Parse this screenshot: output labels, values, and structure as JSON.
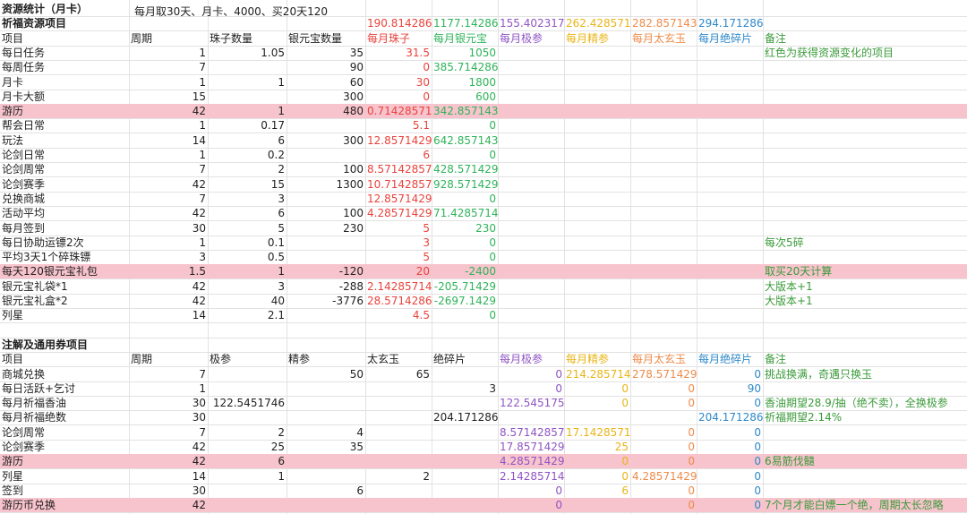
{
  "title": "资源统计（月卡）",
  "subtitle": "每月取30天、月卡、4000、买20天120",
  "section1": {
    "title": "祈福资源项目",
    "totals": [
      "190.814286",
      "1177.14286",
      "155.402317",
      "262.428571",
      "282.857143",
      "294.171286"
    ],
    "headers": [
      "项目",
      "周期",
      "珠子数量",
      "银元宝数量",
      "每月珠子",
      "每月银元宝",
      "每月极参",
      "每月精参",
      "每月太玄玉",
      "每月绝碎片",
      "备注"
    ],
    "rows": [
      {
        "name": "每日任务",
        "period": "1",
        "beads": "1.05",
        "silver": "35",
        "mbeads": "31.5",
        "msilver": "1050",
        "note": "红色为获得资源变化的项目",
        "hl": false
      },
      {
        "name": "每周任务",
        "period": "7",
        "beads": "",
        "silver": "90",
        "mbeads": "0",
        "msilver": "385.714286",
        "note": "",
        "hl": false
      },
      {
        "name": "月卡",
        "period": "1",
        "beads": "1",
        "silver": "60",
        "mbeads": "30",
        "msilver": "1800",
        "note": "",
        "hl": false
      },
      {
        "name": "月卡大额",
        "period": "15",
        "beads": "",
        "silver": "300",
        "mbeads": "0",
        "msilver": "600",
        "note": "",
        "hl": false
      },
      {
        "name": "游历",
        "period": "42",
        "beads": "1",
        "silver": "480",
        "mbeads": "0.71428571",
        "msilver": "342.857143",
        "note": "",
        "hl": true
      },
      {
        "name": "帮会日常",
        "period": "1",
        "beads": "0.17",
        "silver": "",
        "mbeads": "5.1",
        "msilver": "0",
        "note": "",
        "hl": false
      },
      {
        "name": "玩法",
        "period": "14",
        "beads": "6",
        "silver": "300",
        "mbeads": "12.8571429",
        "msilver": "642.857143",
        "note": "",
        "hl": false
      },
      {
        "name": "论剑日常",
        "period": "1",
        "beads": "0.2",
        "silver": "",
        "mbeads": "6",
        "msilver": "0",
        "note": "",
        "hl": false
      },
      {
        "name": "论剑周常",
        "period": "7",
        "beads": "2",
        "silver": "100",
        "mbeads": "8.57142857",
        "msilver": "428.571429",
        "note": "",
        "hl": false
      },
      {
        "name": "论剑赛季",
        "period": "42",
        "beads": "15",
        "silver": "1300",
        "mbeads": "10.7142857",
        "msilver": "928.571429",
        "note": "",
        "hl": false
      },
      {
        "name": "兑换商城",
        "period": "7",
        "beads": "3",
        "silver": "",
        "mbeads": "12.8571429",
        "msilver": "0",
        "note": "",
        "hl": false
      },
      {
        "name": "活动平均",
        "period": "42",
        "beads": "6",
        "silver": "100",
        "mbeads": "4.28571429",
        "msilver": "71.4285714",
        "note": "",
        "hl": false
      },
      {
        "name": "每月签到",
        "period": "30",
        "beads": "5",
        "silver": "230",
        "mbeads": "5",
        "msilver": "230",
        "note": "",
        "hl": false
      },
      {
        "name": "每日协助运镖2次",
        "period": "1",
        "beads": "0.1",
        "silver": "",
        "mbeads": "3",
        "msilver": "0",
        "note": "每次5碎",
        "hl": false
      },
      {
        "name": "平均3天1个碎珠镖",
        "period": "3",
        "beads": "0.5",
        "silver": "",
        "mbeads": "5",
        "msilver": "0",
        "note": "",
        "hl": false
      },
      {
        "name": "每天120银元宝礼包",
        "period": "1.5",
        "beads": "1",
        "silver": "-120",
        "mbeads": "20",
        "msilver": "-2400",
        "note": "取买20天计算",
        "hl": true
      },
      {
        "name": "银元宝礼袋*1",
        "period": "42",
        "beads": "3",
        "silver": "-288",
        "mbeads": "2.14285714",
        "msilver": "-205.71429",
        "note": "大版本+1",
        "hl": false
      },
      {
        "name": "银元宝礼盒*2",
        "period": "42",
        "beads": "40",
        "silver": "-3776",
        "mbeads": "28.5714286",
        "msilver": "-2697.1429",
        "note": "大版本+1",
        "hl": false
      },
      {
        "name": "列星",
        "period": "14",
        "beads": "2.1",
        "silver": "",
        "mbeads": "4.5",
        "msilver": "0",
        "note": "",
        "hl": false
      }
    ]
  },
  "section2": {
    "title": "注解及通用券项目",
    "headers": [
      "项目",
      "周期",
      "极参",
      "精参",
      "太玄玉",
      "绝碎片",
      "每月极参",
      "每月精参",
      "每月太玄玉",
      "每月绝碎片",
      "备注"
    ],
    "rows": [
      {
        "name": "商城兑换",
        "period": "7",
        "ji": "",
        "jing": "50",
        "tai": "65",
        "jue": "",
        "mji": "0",
        "mjing": "214.285714",
        "mtai": "278.571429",
        "mjue": "0",
        "note": "挑战换满，奇遇只换玉",
        "hl": false
      },
      {
        "name": "每日活跃+乞讨",
        "period": "1",
        "ji": "",
        "jing": "",
        "tai": "",
        "jue": "3",
        "mji": "0",
        "mjing": "0",
        "mtai": "0",
        "mjue": "90",
        "note": "",
        "hl": false
      },
      {
        "name": "每月祈福香油",
        "period": "30",
        "ji": "122.5451746",
        "jing": "",
        "tai": "",
        "jue": "",
        "mji": "122.545175",
        "mjing": "0",
        "mtai": "0",
        "mjue": "0",
        "note": "香油期望28.9/抽（绝不卖），全换极参",
        "hl": false
      },
      {
        "name": "每月祈福绝数",
        "period": "30",
        "ji": "",
        "jing": "",
        "tai": "",
        "jue": "204.171286",
        "mji": "",
        "mjing": "",
        "mtai": "",
        "mjue": "204.171286",
        "note": "祈福期望2.14%",
        "hl": false
      },
      {
        "name": "论剑周常",
        "period": "7",
        "ji": "2",
        "jing": "4",
        "tai": "",
        "jue": "",
        "mji": "8.57142857",
        "mjing": "17.1428571",
        "mtai": "0",
        "mjue": "0",
        "note": "",
        "hl": false
      },
      {
        "name": "论剑赛季",
        "period": "42",
        "ji": "25",
        "jing": "35",
        "tai": "",
        "jue": "",
        "mji": "17.8571429",
        "mjing": "25",
        "mtai": "0",
        "mjue": "0",
        "note": "",
        "hl": false
      },
      {
        "name": "游历",
        "period": "42",
        "ji": "6",
        "jing": "",
        "tai": "",
        "jue": "",
        "mji": "4.28571429",
        "mjing": "0",
        "mtai": "0",
        "mjue": "0",
        "note": "6易筋伐髓",
        "hl": true
      },
      {
        "name": "列星",
        "period": "14",
        "ji": "1",
        "jing": "",
        "tai": "2",
        "jue": "",
        "mji": "2.14285714",
        "mjing": "0",
        "mtai": "4.28571429",
        "mjue": "0",
        "note": "",
        "hl": false
      },
      {
        "name": "签到",
        "period": "30",
        "ji": "",
        "jing": "6",
        "tai": "",
        "jue": "",
        "mji": "0",
        "mjing": "6",
        "mtai": "0",
        "mjue": "0",
        "note": "",
        "hl": false
      },
      {
        "name": "游历币兑换",
        "period": "42",
        "ji": "",
        "jing": "",
        "tai": "",
        "jue": "",
        "mji": "0",
        "mjing": "",
        "mtai": "0",
        "mjue": "0",
        "note": "7个月才能白嫖一个绝，周期太长忽略",
        "hl": true
      }
    ]
  },
  "colors": {
    "highlight": "#f7c3cc",
    "red": "#e8433c",
    "green": "#2fb35a",
    "purple": "#8f55c4",
    "yellow": "#e8b417",
    "orange": "#ee8b4a",
    "blue": "#2e88c8"
  }
}
